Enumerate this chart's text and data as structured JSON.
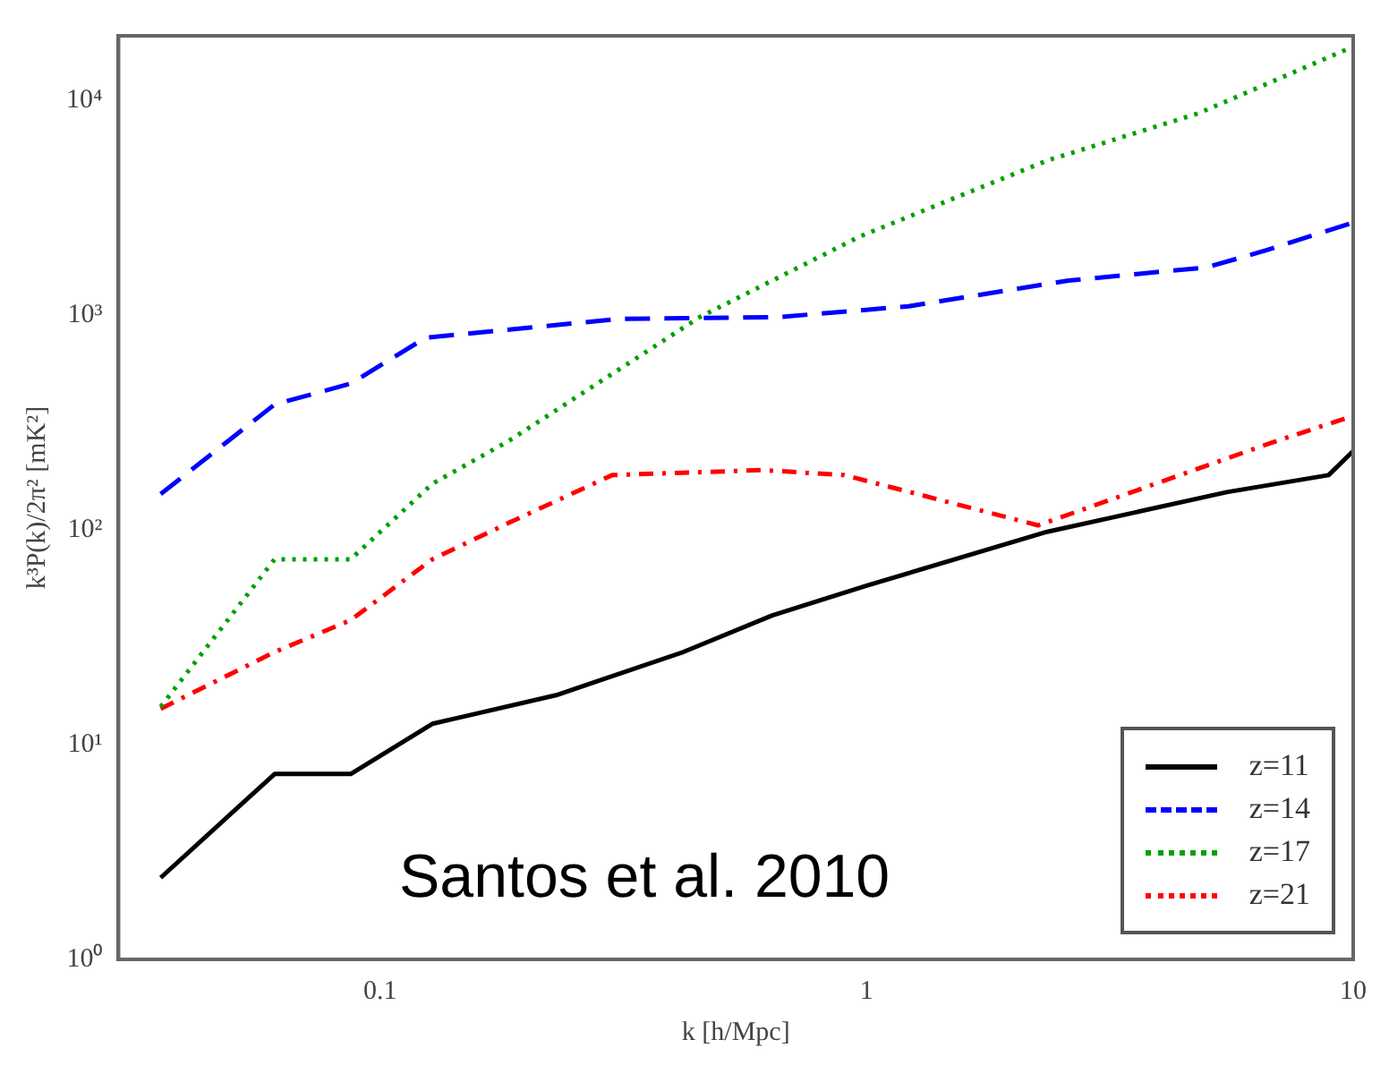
{
  "chart_data": {
    "type": "line",
    "xlabel": "k [h/Mpc]",
    "ylabel": "k³P(k)/2π² [mK²]",
    "log": "xy",
    "grid": false,
    "legend": "bottom right",
    "marker": "none",
    "xlim": [
      0.029,
      10
    ],
    "ylim": [
      1,
      20000
    ],
    "xticks": [
      0.1,
      1,
      10
    ],
    "yticks": [
      {
        "value": 1,
        "label": "10⁰"
      },
      {
        "value": 10,
        "label": "10¹"
      },
      {
        "value": 100,
        "label": "10²"
      },
      {
        "value": 1000,
        "label": "10³"
      },
      {
        "value": 10000,
        "label": "10⁴"
      }
    ],
    "annotations": [
      "Santos et al. 2010"
    ],
    "series": [
      {
        "name": "z=11",
        "color": "#000000",
        "line_style": "solid",
        "x": [
          0.0354,
          0.0607,
          0.087,
          0.128,
          0.23,
          0.42,
          0.64,
          1.0,
          2.35,
          5.5,
          8.9,
          10
        ],
        "values": [
          2.4,
          7.3,
          7.3,
          12.5,
          17,
          27,
          40,
          55,
          98,
          150,
          180,
          233
        ]
      },
      {
        "name": "z=14",
        "color": "#0000ff",
        "line_style": "dashed",
        "x": [
          0.0354,
          0.0607,
          0.087,
          0.124,
          0.308,
          0.66,
          1.22,
          2.6,
          5.0,
          6.6,
          10
        ],
        "values": [
          147,
          384,
          480,
          785,
          960,
          980,
          1100,
          1450,
          1670,
          2000,
          2700
        ]
      },
      {
        "name": "z=17",
        "color": "#00a000",
        "line_style": "dotted",
        "x": [
          0.0354,
          0.0607,
          0.087,
          0.128,
          0.184,
          0.454,
          0.97,
          2.35,
          4.8,
          10
        ],
        "values": [
          15,
          73,
          73,
          164,
          260,
          980,
          2330,
          5250,
          8700,
          17800
        ]
      },
      {
        "name": "z=21",
        "color": "#ff0000",
        "line_style": "dashdot",
        "x": [
          0.0354,
          0.0607,
          0.087,
          0.128,
          0.184,
          0.3,
          0.61,
          0.9,
          2.25,
          6.8,
          10
        ],
        "values": [
          14.7,
          27,
          38,
          73,
          108,
          180,
          190,
          180,
          105,
          255,
          340
        ]
      }
    ]
  }
}
